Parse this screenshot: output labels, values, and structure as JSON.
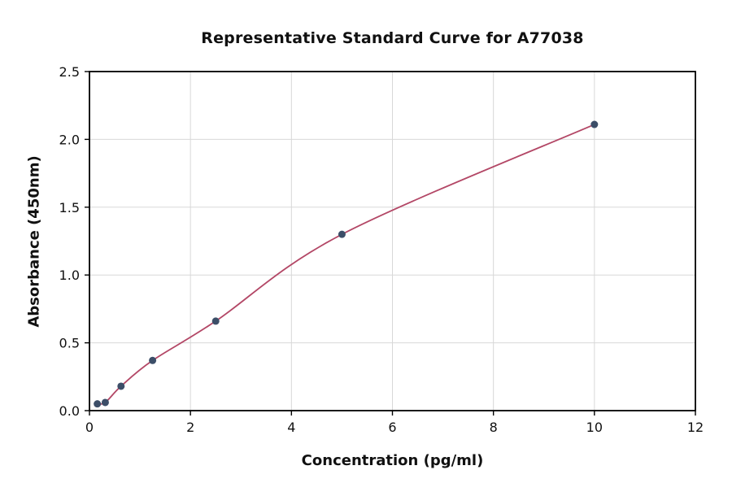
{
  "chart_data": {
    "type": "scatter",
    "title": "Representative Standard Curve for A77038",
    "xlabel": "Concentration (pg/ml)",
    "ylabel": "Absorbance (450nm)",
    "xlim": [
      0,
      12
    ],
    "ylim": [
      0,
      2.5
    ],
    "x_ticks": [
      0,
      2,
      4,
      6,
      8,
      10,
      12
    ],
    "x_tick_labels": [
      "0",
      "2",
      "4",
      "6",
      "8",
      "10",
      "12"
    ],
    "y_ticks": [
      0.0,
      0.5,
      1.0,
      1.5,
      2.0,
      2.5
    ],
    "y_tick_labels": [
      "0.0",
      "0.5",
      "1.0",
      "1.5",
      "2.0",
      "2.5"
    ],
    "grid": true,
    "legend": "none",
    "points": [
      {
        "x": 0.156,
        "y": 0.05
      },
      {
        "x": 0.313,
        "y": 0.06
      },
      {
        "x": 0.625,
        "y": 0.18
      },
      {
        "x": 1.25,
        "y": 0.37
      },
      {
        "x": 2.5,
        "y": 0.66
      },
      {
        "x": 5,
        "y": 1.3
      },
      {
        "x": 10,
        "y": 2.11
      }
    ],
    "curve_color": "#b34766",
    "point_color": "#3c4e68",
    "grid_color": "#d8d8d8",
    "axis_color": "#000000"
  }
}
